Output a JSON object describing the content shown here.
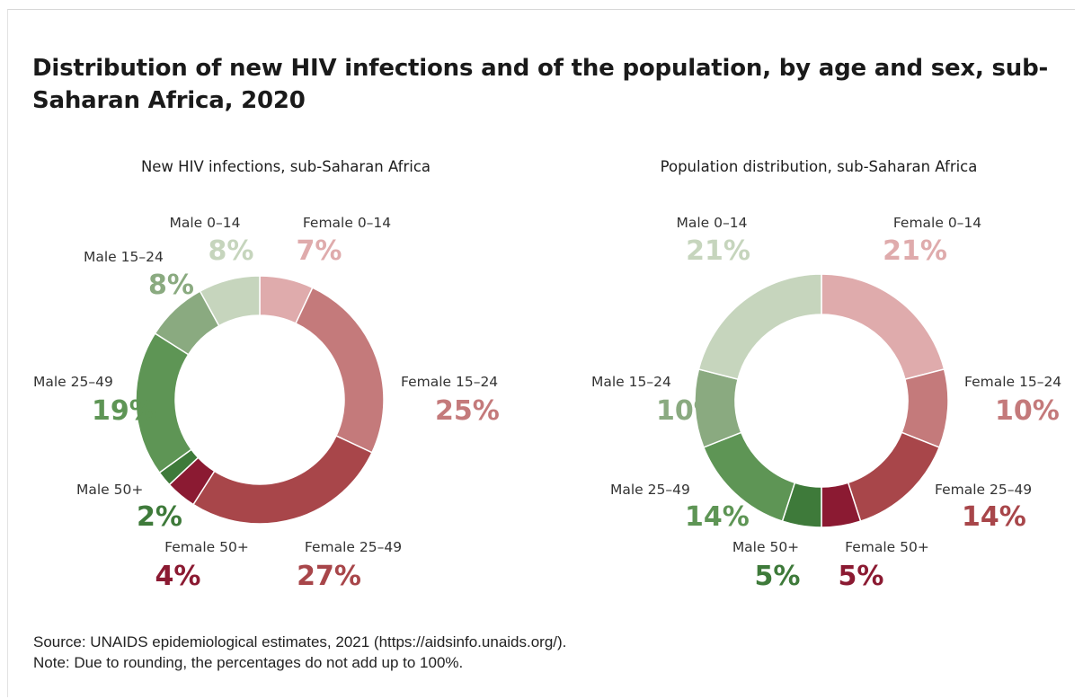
{
  "title": "Distribution of new HIV infections and of the population, by age and sex, sub-Saharan Africa, 2020",
  "footer": {
    "source": "Source: UNAIDS epidemiological estimates, 2021 (https://aidsinfo.unaids.org/).",
    "note": "Note:  Due to rounding, the percentages do not add up to 100%."
  },
  "chart_data": [
    {
      "type": "pie",
      "subtitle": "New HIV infections, sub-Saharan Africa",
      "slices": [
        {
          "label": "Female 0–14",
          "value": 7,
          "pct_label": "7%",
          "color": "#dfabac"
        },
        {
          "label": "Female 15–24",
          "value": 25,
          "pct_label": "25%",
          "color": "#c47a7b"
        },
        {
          "label": "Female 25–49",
          "value": 27,
          "pct_label": "27%",
          "color": "#a8464a"
        },
        {
          "label": "Female 50+",
          "value": 4,
          "pct_label": "4%",
          "color": "#8b1a32"
        },
        {
          "label": "Male 50+",
          "value": 2,
          "pct_label": "2%",
          "color": "#3e7a3a"
        },
        {
          "label": "Male 25–49",
          "value": 19,
          "pct_label": "19%",
          "color": "#5e9555"
        },
        {
          "label": "Male 15–24",
          "value": 8,
          "pct_label": "8%",
          "color": "#8aaa80"
        },
        {
          "label": "Male 0–14",
          "value": 8,
          "pct_label": "8%",
          "color": "#c6d5bd"
        }
      ]
    },
    {
      "type": "pie",
      "subtitle": "Population distribution, sub-Saharan Africa",
      "slices": [
        {
          "label": "Female 0–14",
          "value": 21,
          "pct_label": "21%",
          "color": "#dfabac"
        },
        {
          "label": "Female 15–24",
          "value": 10,
          "pct_label": "10%",
          "color": "#c47a7b"
        },
        {
          "label": "Female 25–49",
          "value": 14,
          "pct_label": "14%",
          "color": "#a8464a"
        },
        {
          "label": "Female 50+",
          "value": 5,
          "pct_label": "5%",
          "color": "#8b1a32"
        },
        {
          "label": "Male 50+",
          "value": 5,
          "pct_label": "5%",
          "color": "#3e7a3a"
        },
        {
          "label": "Male 25–49",
          "value": 14,
          "pct_label": "14%",
          "color": "#5e9555"
        },
        {
          "label": "Male 15–24",
          "value": 10,
          "pct_label": "10%",
          "color": "#8aaa80"
        },
        {
          "label": "Male 0–14",
          "value": 21,
          "pct_label": "21%",
          "color": "#c6d5bd"
        }
      ]
    }
  ]
}
